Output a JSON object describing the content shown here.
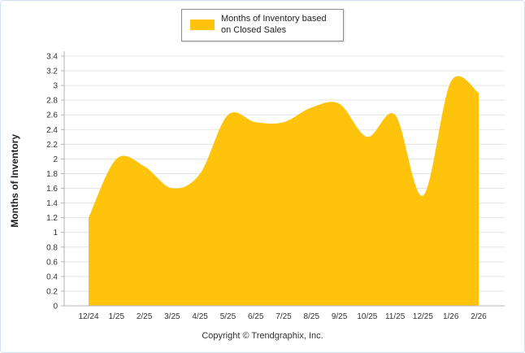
{
  "legend": {
    "label": "Months of Inventory based on Closed Sales",
    "swatch_color": "#FFC30B"
  },
  "footer": {
    "copyright": "Copyright © Trendgraphix, Inc."
  },
  "chart_data": {
    "type": "area",
    "title": "Months of Inventory based on Closed Sales",
    "xlabel": "",
    "ylabel": "Months of Inventory",
    "categories": [
      "12/24",
      "1/25",
      "2/25",
      "3/25",
      "4/25",
      "5/25",
      "6/25",
      "7/25",
      "8/25",
      "9/25",
      "10/25",
      "11/25",
      "12/25",
      "1/26",
      "2/26"
    ],
    "values": [
      1.2,
      2.0,
      1.9,
      1.6,
      1.8,
      2.6,
      2.5,
      2.5,
      2.7,
      2.75,
      2.3,
      2.6,
      1.5,
      3.05,
      2.9
    ],
    "ylim": [
      0,
      3.4
    ],
    "ytick_step": 0.2,
    "grid": true,
    "legend_position": "top",
    "area_color": "#FFC30B",
    "grid_color": "#e3e3e3",
    "axis_color": "#b3b3b3",
    "tick_text_color": "#333333"
  }
}
